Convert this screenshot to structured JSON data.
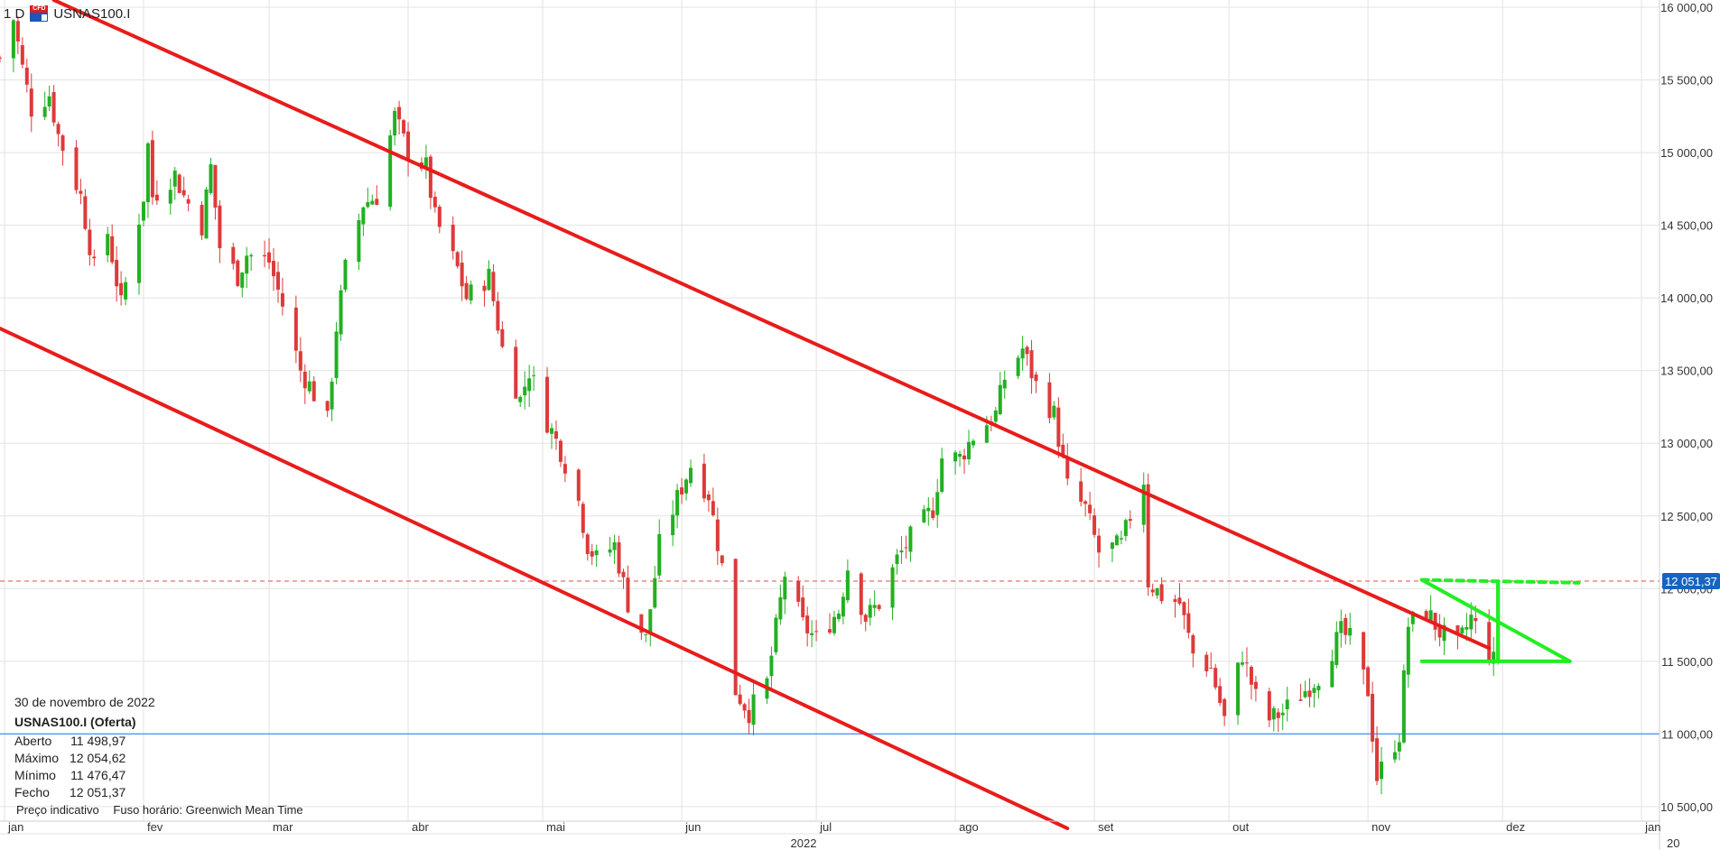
{
  "header": {
    "timeframe": "1 D",
    "badge": "CFD",
    "symbol": "USNAS100.I"
  },
  "info": {
    "date": "30 de novembro de 2022",
    "instrument": "USNAS100.I (Oferta)",
    "rows": [
      {
        "label": "Aberto",
        "value": "11 498,97"
      },
      {
        "label": "Máximo",
        "value": "12 054,62"
      },
      {
        "label": "Mínimo",
        "value": "11 476,47"
      },
      {
        "label": "Fecho",
        "value": "12 051,37"
      }
    ],
    "price_note": "Preço indicativo",
    "timezone": "Fuso horário: Greenwich Mean Time"
  },
  "colors": {
    "up": "#22b022",
    "down": "#dd3a3a",
    "channel": "#e81c1c",
    "pattern": "#22ee22",
    "support": "#5b9bf0",
    "price_tag": "#1565c0"
  },
  "chart_data": {
    "type": "candlestick",
    "ylim": [
      10400,
      16050
    ],
    "y_ticks": [
      "16 000,00",
      "15 500,00",
      "15 000,00",
      "14 500,00",
      "14 000,00",
      "13 500,00",
      "13 000,00",
      "12 500,00",
      "12 000,00",
      "11 500,00",
      "11 000,00",
      "10 500,00"
    ],
    "y_tick_values": [
      16000,
      15500,
      15000,
      14500,
      14000,
      13500,
      13000,
      12500,
      12000,
      11500,
      11000,
      10500
    ],
    "x_ticks": [
      {
        "label": "jan",
        "date": "2022-01-01"
      },
      {
        "label": "fev",
        "date": "2022-02-01"
      },
      {
        "label": "mar",
        "date": "2022-03-01"
      },
      {
        "label": "abr",
        "date": "2022-04-01"
      },
      {
        "label": "mai",
        "date": "2022-05-01"
      },
      {
        "label": "jun",
        "date": "2022-06-01"
      },
      {
        "label": "jul",
        "date": "2022-07-01"
      },
      {
        "label": "ago",
        "date": "2022-08-01"
      },
      {
        "label": "set",
        "date": "2022-09-01"
      },
      {
        "label": "out",
        "date": "2022-10-01"
      },
      {
        "label": "nov",
        "date": "2022-11-01"
      },
      {
        "label": "dez",
        "date": "2022-12-01"
      },
      {
        "label": "jan",
        "date": "2023-01-01"
      }
    ],
    "year_label": "2022",
    "year_label_cut": "20",
    "last_price": {
      "value": 12051.37,
      "label": "12 051,37"
    },
    "support_level": 11000,
    "close_path": [
      [
        "2021-12-31",
        15650
      ],
      [
        "2022-01-03",
        15920
      ],
      [
        "2022-01-05",
        15580
      ],
      [
        "2022-01-07",
        15300
      ],
      [
        "2022-01-11",
        15400
      ],
      [
        "2022-01-13",
        15120
      ],
      [
        "2022-01-18",
        14700
      ],
      [
        "2022-01-21",
        14200
      ],
      [
        "2022-01-24",
        14450
      ],
      [
        "2022-01-27",
        13950
      ],
      [
        "2022-02-01",
        14700
      ],
      [
        "2022-02-02",
        15050
      ],
      [
        "2022-02-03",
        14700
      ],
      [
        "2022-02-08",
        14850
      ],
      [
        "2022-02-10",
        14700
      ],
      [
        "2022-02-14",
        14500
      ],
      [
        "2022-02-16",
        14900
      ],
      [
        "2022-02-18",
        14350
      ],
      [
        "2022-02-22",
        14150
      ],
      [
        "2022-02-24",
        14300
      ],
      [
        "2022-03-01",
        14250
      ],
      [
        "2022-03-04",
        13950
      ],
      [
        "2022-03-08",
        13500
      ],
      [
        "2022-03-10",
        13400
      ],
      [
        "2022-03-14",
        13150
      ],
      [
        "2022-03-16",
        13800
      ],
      [
        "2022-03-18",
        14200
      ],
      [
        "2022-03-22",
        14650
      ],
      [
        "2022-03-25",
        14700
      ],
      [
        "2022-03-29",
        15250
      ],
      [
        "2022-04-01",
        15000
      ],
      [
        "2022-04-05",
        14900
      ],
      [
        "2022-04-07",
        14550
      ],
      [
        "2022-04-12",
        14200
      ],
      [
        "2022-04-14",
        14000
      ],
      [
        "2022-04-19",
        14150
      ],
      [
        "2022-04-22",
        13650
      ],
      [
        "2022-04-26",
        13300
      ],
      [
        "2022-04-28",
        13500
      ],
      [
        "2022-05-02",
        13150
      ],
      [
        "2022-05-05",
        12950
      ],
      [
        "2022-05-09",
        12600
      ],
      [
        "2022-05-11",
        12300
      ],
      [
        "2022-05-13",
        12200
      ],
      [
        "2022-05-17",
        12300
      ],
      [
        "2022-05-20",
        11900
      ],
      [
        "2022-05-24",
        11650
      ],
      [
        "2022-05-27",
        12300
      ],
      [
        "2022-06-01",
        12700
      ],
      [
        "2022-06-03",
        12850
      ],
      [
        "2022-06-07",
        12650
      ],
      [
        "2022-06-10",
        12150
      ],
      [
        "2022-06-13",
        11300
      ],
      [
        "2022-06-16",
        11150
      ],
      [
        "2022-06-20",
        11350
      ],
      [
        "2022-06-24",
        12100
      ],
      [
        "2022-06-28",
        11750
      ],
      [
        "2022-07-01",
        11650
      ],
      [
        "2022-07-06",
        11850
      ],
      [
        "2022-07-08",
        12150
      ],
      [
        "2022-07-12",
        11800
      ],
      [
        "2022-07-15",
        11900
      ],
      [
        "2022-07-19",
        12200
      ],
      [
        "2022-07-22",
        12350
      ],
      [
        "2022-07-27",
        12550
      ],
      [
        "2022-07-29",
        12900
      ],
      [
        "2022-08-02",
        12900
      ],
      [
        "2022-08-05",
        13050
      ],
      [
        "2022-08-10",
        13200
      ],
      [
        "2022-08-12",
        13450
      ],
      [
        "2022-08-16",
        13650
      ],
      [
        "2022-08-19",
        13400
      ],
      [
        "2022-08-23",
        13200
      ],
      [
        "2022-08-26",
        12700
      ],
      [
        "2022-08-30",
        12550
      ],
      [
        "2022-09-02",
        12250
      ],
      [
        "2022-09-07",
        12300
      ],
      [
        "2022-09-09",
        12500
      ],
      [
        "2022-09-12",
        12750
      ],
      [
        "2022-09-13",
        12050
      ],
      [
        "2022-09-16",
        11950
      ],
      [
        "2022-09-20",
        11900
      ],
      [
        "2022-09-23",
        11550
      ],
      [
        "2022-09-27",
        11450
      ],
      [
        "2022-09-30",
        11100
      ],
      [
        "2022-10-04",
        11550
      ],
      [
        "2022-10-07",
        11250
      ],
      [
        "2022-10-10",
        11100
      ],
      [
        "2022-10-13",
        11150
      ],
      [
        "2022-10-18",
        11300
      ],
      [
        "2022-10-21",
        11400
      ],
      [
        "2022-10-26",
        11700
      ],
      [
        "2022-10-28",
        11650
      ],
      [
        "2022-11-01",
        11300
      ],
      [
        "2022-11-03",
        10700
      ],
      [
        "2022-11-08",
        11000
      ],
      [
        "2022-11-10",
        11750
      ],
      [
        "2022-11-14",
        11850
      ],
      [
        "2022-11-17",
        11700
      ],
      [
        "2022-11-21",
        11600
      ],
      [
        "2022-11-24",
        11800
      ],
      [
        "2022-11-29",
        11500
      ],
      [
        "2022-11-30",
        12050
      ]
    ],
    "drawings": [
      {
        "name": "channel-upper",
        "from": [
          "2022-01-12",
          16050
        ],
        "to": [
          "2022-11-28",
          11590
        ]
      },
      {
        "name": "channel-lower",
        "from": [
          "2021-12-31",
          13790
        ],
        "to": [
          "2022-08-26",
          10350
        ]
      },
      {
        "name": "triangle-top",
        "from": [
          "2022-11-13",
          12060
        ],
        "to": [
          "2022-12-16",
          11500
        ]
      },
      {
        "name": "triangle-base",
        "from": [
          "2022-11-13",
          11500
        ],
        "to": [
          "2022-12-16",
          11500
        ]
      },
      {
        "name": "breakout-candle-line",
        "from": [
          "2022-11-30",
          11500
        ],
        "to": [
          "2022-11-30",
          12050
        ]
      },
      {
        "name": "target-dashed",
        "from": [
          "2022-11-13",
          12060
        ],
        "to": [
          "2022-12-18",
          12040
        ]
      }
    ]
  }
}
